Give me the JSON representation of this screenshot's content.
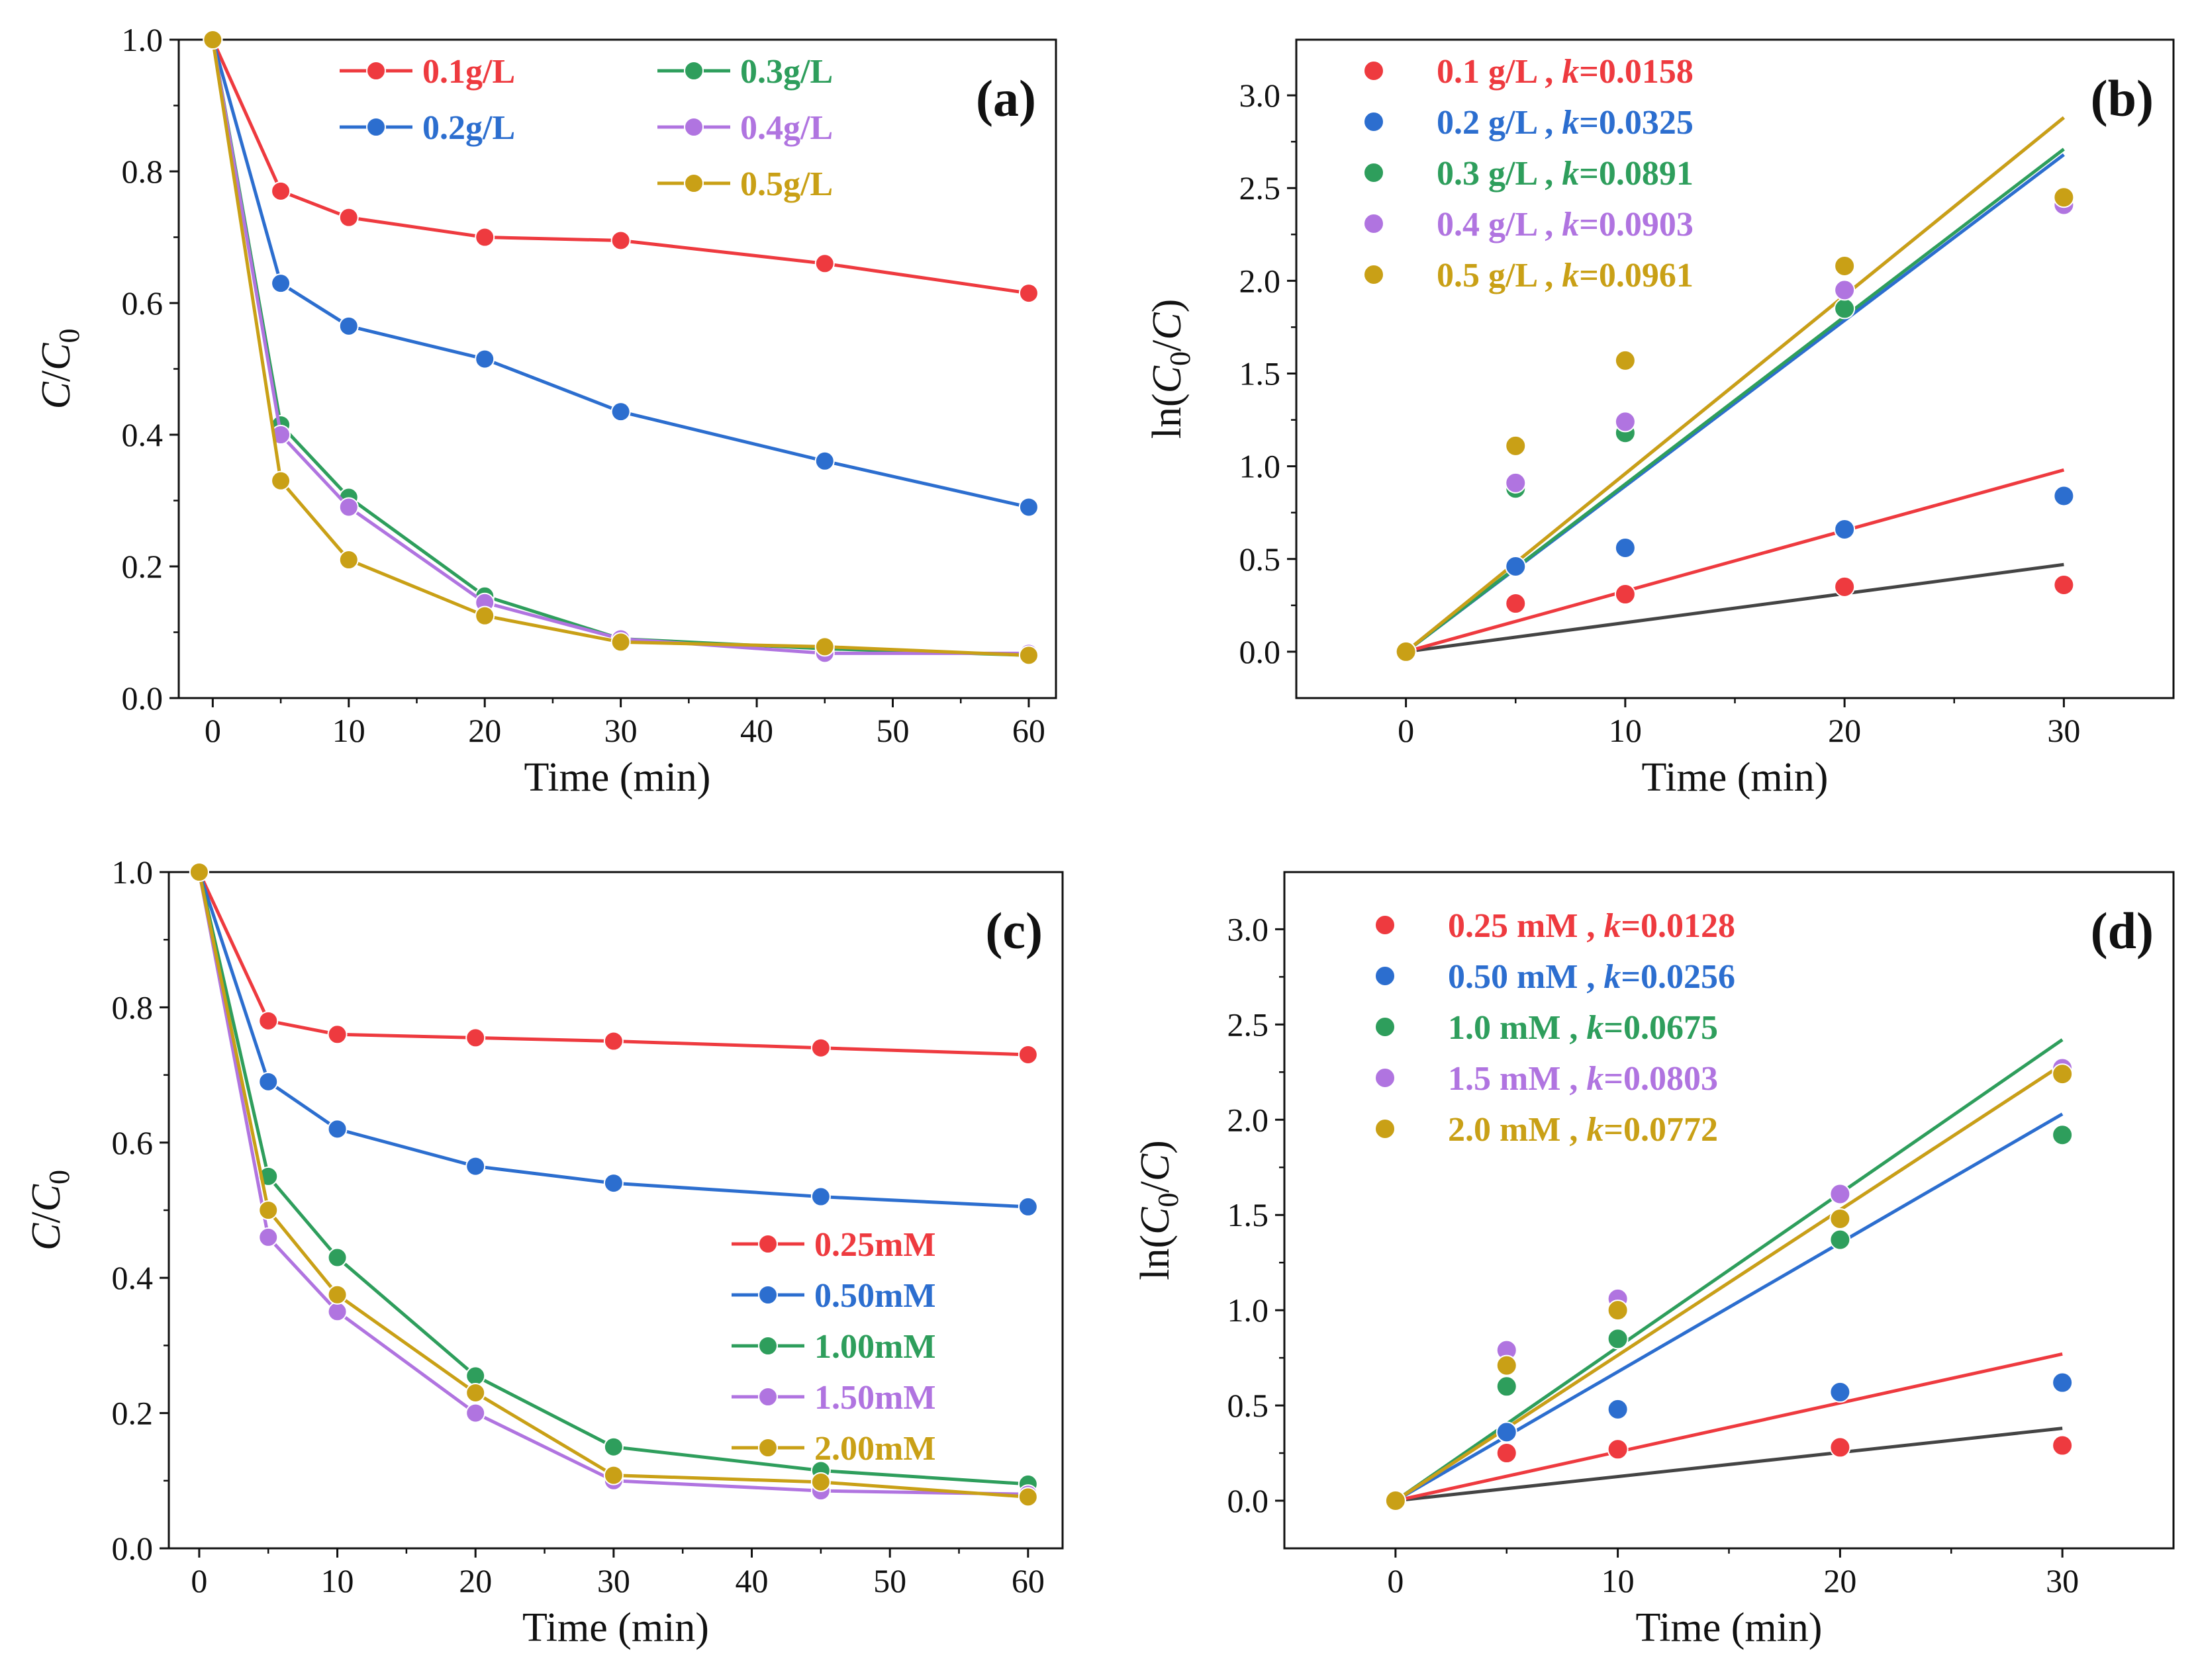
{
  "colors": {
    "red": "#ee3a3f",
    "blue": "#2c6ecf",
    "green": "#2e9e5c",
    "purple": "#b074e0",
    "gold": "#c9a016",
    "gray": "#444444"
  },
  "chart_data": [
    {
      "id": "a",
      "type": "line",
      "panel_label": "(a)",
      "xlabel": "Time (min)",
      "ylabel": "C/C0",
      "xlim": [
        -2.5,
        62
      ],
      "ylim": [
        0,
        1.0
      ],
      "xticks": [
        "0",
        "10",
        "20",
        "30",
        "40",
        "50",
        "60"
      ],
      "yticks": [
        "0.0",
        "0.2",
        "0.4",
        "0.6",
        "0.8",
        "1.0"
      ],
      "x": [
        0,
        5,
        10,
        20,
        30,
        45,
        60
      ],
      "legend_placement": "top-right",
      "series": [
        {
          "name": "0.1g/L",
          "color": "red",
          "values": [
            1.0,
            0.77,
            0.73,
            0.7,
            0.695,
            0.66,
            0.615
          ]
        },
        {
          "name": "0.2g/L",
          "color": "blue",
          "values": [
            1.0,
            0.63,
            0.565,
            0.515,
            0.435,
            0.36,
            0.29
          ]
        },
        {
          "name": "0.3g/L",
          "color": "green",
          "values": [
            1.0,
            0.415,
            0.305,
            0.155,
            0.09,
            0.075,
            0.065
          ]
        },
        {
          "name": "0.4g/L",
          "color": "purple",
          "values": [
            1.0,
            0.4,
            0.29,
            0.145,
            0.09,
            0.068,
            0.068
          ]
        },
        {
          "name": "0.5g/L",
          "color": "gold",
          "values": [
            1.0,
            0.33,
            0.21,
            0.125,
            0.085,
            0.078,
            0.065
          ]
        }
      ]
    },
    {
      "id": "b",
      "type": "scatter",
      "panel_label": "(b)",
      "xlabel": "Time (min)",
      "ylabel": "ln(C0/C)",
      "xlim": [
        -5,
        35
      ],
      "ylim": [
        -0.25,
        3.3
      ],
      "xticks": [
        "0",
        "10",
        "20",
        "30"
      ],
      "yticks": [
        "0.0",
        "0.5",
        "1.0",
        "1.5",
        "2.0",
        "2.5",
        "3.0"
      ],
      "x": [
        0,
        5,
        10,
        20,
        30
      ],
      "legend_placement": "top-left",
      "series": [
        {
          "name": "0.1 g/L , ",
          "k_label": "k",
          "k_value": "=0.0158",
          "color": "red",
          "values": [
            0,
            0.26,
            0.31,
            0.35,
            0.36
          ],
          "fit_end": 0.98
        },
        {
          "name": "0.2 g/L , ",
          "k_label": "k",
          "k_value": "=0.0325",
          "color": "blue",
          "values": [
            0,
            0.46,
            0.56,
            0.66,
            0.84
          ],
          "fit_end": 2.68
        },
        {
          "name": "0.3 g/L , ",
          "k_label": "k",
          "k_value": "=0.0891",
          "color": "green",
          "values": [
            0,
            0.88,
            1.18,
            1.85,
            2.43
          ],
          "fit_end": 2.71
        },
        {
          "name": "0.4 g/L , ",
          "k_label": "k",
          "k_value": "=0.0903",
          "color": "purple",
          "values": [
            0,
            0.91,
            1.24,
            1.95,
            2.41
          ],
          "fit_end": 2.88
        },
        {
          "name": "0.5 g/L , ",
          "k_label": "k",
          "k_value": "=0.0961",
          "color": "gold",
          "values": [
            0,
            1.11,
            1.57,
            2.08,
            2.45
          ],
          "fit_end": 2.88
        }
      ],
      "baseline_fit_end": 0.47
    },
    {
      "id": "c",
      "type": "line",
      "panel_label": "(c)",
      "xlabel": "Time (min)",
      "ylabel": "C/C0",
      "xlim": [
        -2.2,
        62.5
      ],
      "ylim": [
        0,
        1.0
      ],
      "xticks": [
        "0",
        "10",
        "20",
        "30",
        "40",
        "50",
        "60"
      ],
      "yticks": [
        "0.0",
        "0.2",
        "0.4",
        "0.6",
        "0.8",
        "1.0"
      ],
      "x": [
        0,
        5,
        10,
        20,
        30,
        45,
        60
      ],
      "legend_placement": "bottom-right",
      "series": [
        {
          "name": "0.25mM",
          "color": "red",
          "values": [
            1.0,
            0.78,
            0.76,
            0.755,
            0.75,
            0.74,
            0.73
          ]
        },
        {
          "name": "0.50mM",
          "color": "blue",
          "values": [
            1.0,
            0.69,
            0.62,
            0.565,
            0.54,
            0.52,
            0.505
          ]
        },
        {
          "name": "1.00mM",
          "color": "green",
          "values": [
            1.0,
            0.55,
            0.43,
            0.255,
            0.15,
            0.115,
            0.095
          ]
        },
        {
          "name": "1.50mM",
          "color": "purple",
          "values": [
            1.0,
            0.46,
            0.35,
            0.2,
            0.1,
            0.085,
            0.08
          ]
        },
        {
          "name": "2.00mM",
          "color": "gold",
          "values": [
            1.0,
            0.5,
            0.375,
            0.23,
            0.108,
            0.098,
            0.076
          ]
        }
      ]
    },
    {
      "id": "d",
      "type": "scatter",
      "panel_label": "(d)",
      "xlabel": "Time (min)",
      "ylabel": "ln(C0/C)",
      "xlim": [
        -5,
        35
      ],
      "ylim": [
        -0.25,
        3.3
      ],
      "xticks": [
        "0",
        "10",
        "20",
        "30"
      ],
      "yticks": [
        "0.0",
        "0.5",
        "1.0",
        "1.5",
        "2.0",
        "2.5",
        "3.0"
      ],
      "x": [
        0,
        5,
        10,
        20,
        30
      ],
      "legend_placement": "top-left",
      "series": [
        {
          "name": "0.25 mM , ",
          "k_label": "k",
          "k_value": "=0.0128",
          "color": "red",
          "values": [
            0,
            0.25,
            0.27,
            0.28,
            0.29
          ],
          "fit_end": 0.77
        },
        {
          "name": "0.50 mM , ",
          "k_label": "k",
          "k_value": "=0.0256",
          "color": "blue",
          "values": [
            0,
            0.36,
            0.48,
            0.57,
            0.62
          ],
          "fit_end": 2.03
        },
        {
          "name": "1.0 mM , ",
          "k_label": "k",
          "k_value": "=0.0675",
          "color": "green",
          "values": [
            0,
            0.6,
            0.85,
            1.37,
            1.92
          ],
          "fit_end": 2.42
        },
        {
          "name": "1.5 mM , ",
          "k_label": "k",
          "k_value": "=0.0803",
          "color": "purple",
          "values": [
            0,
            0.79,
            1.06,
            1.61,
            2.27
          ],
          "fit_end": 2.29
        },
        {
          "name": "2.0 mM , ",
          "k_label": "k",
          "k_value": "=0.0772",
          "color": "gold",
          "values": [
            0,
            0.71,
            1.0,
            1.48,
            2.24
          ],
          "fit_end": 2.29
        }
      ],
      "baseline_fit_end": 0.38
    }
  ]
}
